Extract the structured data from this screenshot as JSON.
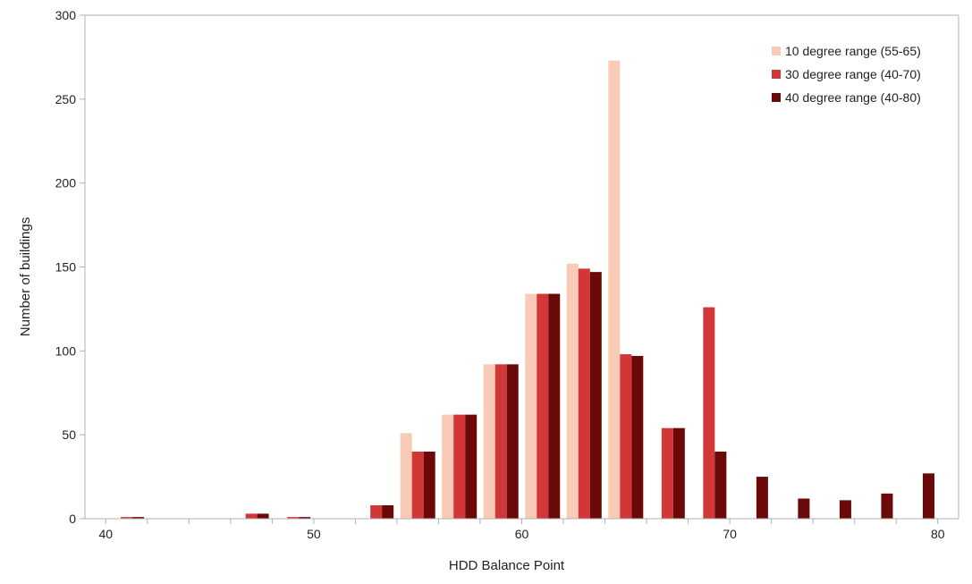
{
  "chart_data": {
    "type": "bar",
    "title": "",
    "xlabel": "HDD Balance Point",
    "ylabel": "Number of buildings",
    "xlim": [
      39,
      81
    ],
    "ylim": [
      0,
      300
    ],
    "x_ticks": [
      40,
      50,
      60,
      70,
      80
    ],
    "y_ticks": [
      0,
      50,
      100,
      150,
      200,
      250,
      300
    ],
    "grid": false,
    "legend_position": "top-right",
    "categories": [
      41,
      43,
      45,
      47,
      49,
      51,
      53,
      55,
      57,
      59,
      61,
      63,
      65,
      67,
      69,
      71,
      73,
      75,
      77,
      79
    ],
    "series": [
      {
        "name": "10 degree range (55-65)",
        "color": "#f9cbb6",
        "values": [
          0,
          0,
          0,
          0,
          0,
          0,
          0,
          51,
          62,
          92,
          134,
          152,
          273,
          0,
          0,
          0,
          0,
          0,
          0,
          0
        ]
      },
      {
        "name": "30 degree range (40-70)",
        "color": "#d23737",
        "values": [
          1,
          0,
          0,
          3,
          1,
          0,
          8,
          40,
          62,
          92,
          134,
          149,
          98,
          54,
          126,
          0,
          0,
          0,
          0,
          0
        ]
      },
      {
        "name": "40 degree range (40-80)",
        "color": "#6b0808",
        "values": [
          1,
          0,
          0,
          3,
          1,
          0,
          8,
          40,
          62,
          92,
          134,
          147,
          97,
          54,
          40,
          25,
          12,
          11,
          15,
          27
        ]
      }
    ]
  }
}
